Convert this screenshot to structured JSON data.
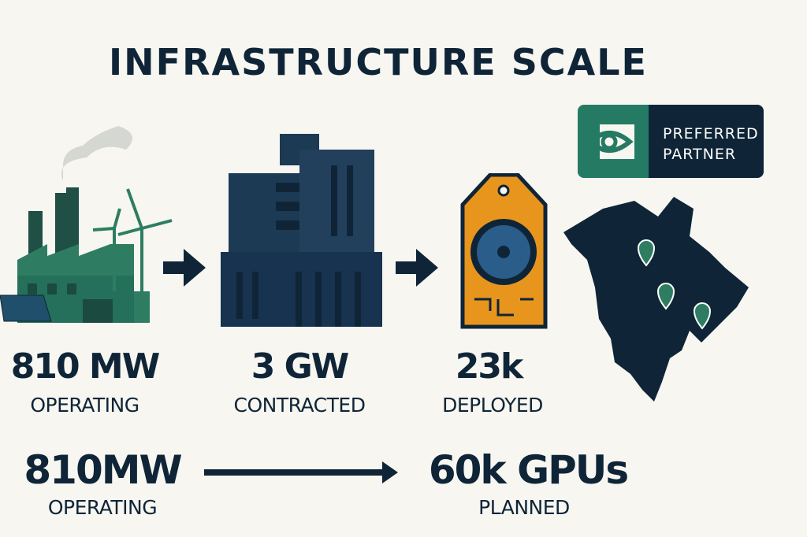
{
  "title": "INFRASTRUCTURE SCALE",
  "badge": {
    "line1": "PREFERRED",
    "line2": "PARTNER",
    "logo": "nvidia-eye-logo"
  },
  "stats": [
    {
      "value": "810 MW",
      "label": "OPERATING",
      "icon": "factory-icon"
    },
    {
      "value": "3 GW",
      "label": "CONTRACTED",
      "icon": "datacenter-building-icon"
    },
    {
      "value": "23k",
      "label": "DEPLOYED",
      "icon": "gpu-card-icon"
    }
  ],
  "bottom": {
    "from_value": "810MW",
    "from_label": "OPERATING",
    "to_value": "60k GPUs",
    "to_label": "PLANNED"
  },
  "colors": {
    "navy": "#0f2537",
    "green": "#2e7d62",
    "orange": "#e8951e",
    "background": "#f7f6f1"
  }
}
